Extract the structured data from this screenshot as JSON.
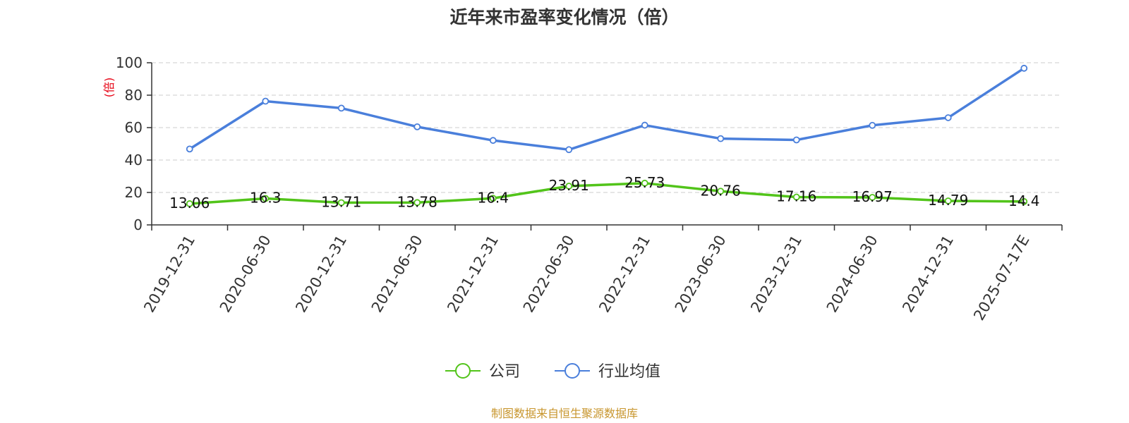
{
  "chart_data": {
    "type": "line",
    "title": "近年来市盈率变化情况（倍）",
    "ylabel": "(倍)",
    "ylim": [
      0,
      100
    ],
    "yticks": [
      0,
      20,
      40,
      60,
      80,
      100
    ],
    "grid": true,
    "legend_position": "bottom-center",
    "categories": [
      "2019-12-31",
      "2020-06-30",
      "2020-12-31",
      "2021-06-30",
      "2021-12-31",
      "2022-06-30",
      "2022-12-31",
      "2023-06-30",
      "2023-12-31",
      "2024-06-30",
      "2024-12-31",
      "2025-07-17E"
    ],
    "series": [
      {
        "name": "公司",
        "color": "#52c41a",
        "values": [
          13.06,
          16.3,
          13.71,
          13.78,
          16.4,
          23.91,
          25.73,
          20.76,
          17.16,
          16.97,
          14.79,
          14.4
        ],
        "labels": [
          "13.06",
          "16.3",
          "13.71",
          "13.78",
          "16.4",
          "23.91",
          "25.73",
          "20.76",
          "17.16",
          "16.97",
          "14.79",
          "14.4"
        ]
      },
      {
        "name": "行业均值",
        "color": "#4a7fdb",
        "values": [
          46.8,
          76.3,
          72.0,
          60.5,
          52.1,
          46.4,
          61.5,
          53.2,
          52.4,
          61.4,
          66.1,
          96.6
        ]
      }
    ]
  },
  "source": "制图数据来自恒生聚源数据库"
}
